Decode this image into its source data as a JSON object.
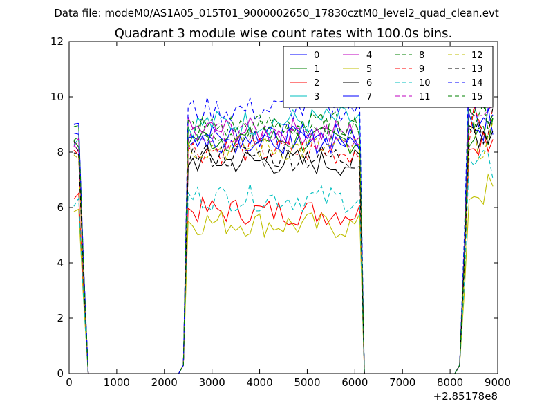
{
  "suptitle": "Data file: modeM0/AS1A05_015T01_9000002650_17830cztM0_level2_quad_clean.evt",
  "chart_data": {
    "type": "line",
    "title": "Quadrant 3 module wise count rates with 100.0s bins.",
    "xlabel": "",
    "ylabel": "",
    "xlim": [
      0,
      9000
    ],
    "ylim": [
      0,
      12
    ],
    "x_offset_label": "+2.85178e8",
    "xticks": [
      0,
      1000,
      2000,
      3000,
      4000,
      5000,
      6000,
      7000,
      8000,
      9000
    ],
    "yticks": [
      0,
      2,
      4,
      6,
      8,
      10,
      12
    ],
    "grid": false,
    "legend_position": "top-right",
    "segments": [
      [
        100,
        400
      ],
      [
        2400,
        6200
      ],
      [
        8200,
        8900
      ]
    ],
    "series": [
      {
        "name": "0",
        "color": "#0000ff",
        "dash": false,
        "levels": [
          9.0,
          8.6,
          8.5,
          9.0
        ]
      },
      {
        "name": "1",
        "color": "#008000",
        "dash": false,
        "levels": [
          8.2,
          8.5,
          8.4,
          8.6
        ]
      },
      {
        "name": "2",
        "color": "#ff0000",
        "dash": false,
        "levels": [
          6.6,
          5.9,
          5.8,
          8.6
        ]
      },
      {
        "name": "3",
        "color": "#00bfbf",
        "dash": false,
        "levels": [
          8.5,
          9.0,
          9.2,
          10.5
        ]
      },
      {
        "name": "4",
        "color": "#bf00bf",
        "dash": false,
        "levels": [
          8.3,
          8.8,
          8.7,
          10.2
        ]
      },
      {
        "name": "5",
        "color": "#bfbf00",
        "dash": false,
        "levels": [
          6.0,
          5.5,
          5.3,
          6.6
        ]
      },
      {
        "name": "6",
        "color": "#000000",
        "dash": false,
        "levels": [
          7.8,
          7.7,
          7.6,
          8.8
        ]
      },
      {
        "name": "7",
        "color": "#0000ff",
        "dash": false,
        "levels": [
          8.8,
          8.5,
          8.4,
          9.6
        ]
      },
      {
        "name": "8",
        "color": "#008000",
        "dash": true,
        "levels": [
          8.7,
          8.8,
          8.9,
          9.4
        ]
      },
      {
        "name": "9",
        "color": "#ff0000",
        "dash": true,
        "levels": [
          8.2,
          8.1,
          8.0,
          9.0
        ]
      },
      {
        "name": "10",
        "color": "#00bfbf",
        "dash": true,
        "levels": [
          6.2,
          6.4,
          6.3,
          7.4
        ]
      },
      {
        "name": "11",
        "color": "#bf00bf",
        "dash": true,
        "levels": [
          8.4,
          8.6,
          8.5,
          9.8
        ]
      },
      {
        "name": "12",
        "color": "#bfbf00",
        "dash": true,
        "levels": [
          8.0,
          8.2,
          8.1,
          8.4
        ]
      },
      {
        "name": "13",
        "color": "#000000",
        "dash": true,
        "levels": [
          8.1,
          7.9,
          7.8,
          9.0
        ]
      },
      {
        "name": "14",
        "color": "#0000ff",
        "dash": true,
        "levels": [
          9.1,
          9.5,
          9.6,
          11.2
        ]
      },
      {
        "name": "15",
        "color": "#008000",
        "dash": true,
        "levels": [
          8.8,
          8.9,
          9.0,
          9.6
        ]
      }
    ]
  }
}
